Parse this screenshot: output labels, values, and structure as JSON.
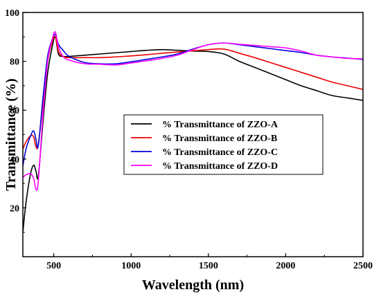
{
  "chart_data": {
    "type": "line",
    "title": "",
    "xlabel": "Wavelength (nm)",
    "ylabel": "Transmittance (%)",
    "xlim": [
      300,
      2500
    ],
    "ylim": [
      0,
      100
    ],
    "x_ticks": [
      500,
      1000,
      1500,
      2000,
      2500
    ],
    "y_ticks": [
      20,
      40,
      60,
      80,
      100
    ],
    "grid": false,
    "legend_position": "center-right",
    "series": [
      {
        "name": "% Transmittance of ZZO-A",
        "color": "#000000",
        "x": [
          300,
          320,
          350,
          370,
          385,
          400,
          430,
          460,
          490,
          510,
          530,
          560,
          600,
          700,
          800,
          900,
          1000,
          1100,
          1200,
          1300,
          1400,
          1500,
          1600,
          1700,
          1800,
          1900,
          2000,
          2100,
          2200,
          2300,
          2400,
          2500
        ],
        "y": [
          10,
          22,
          34,
          37.5,
          35,
          33,
          55,
          75,
          86,
          90,
          83,
          82,
          82,
          82.5,
          83,
          83.5,
          84,
          84.5,
          84.8,
          84.5,
          84.2,
          84,
          83,
          80,
          77.5,
          75,
          72.5,
          70,
          68,
          66,
          65,
          64
        ]
      },
      {
        "name": "% Transmittance of ZZO-B",
        "color": "#ee0000",
        "x": [
          300,
          320,
          350,
          370,
          385,
          400,
          430,
          460,
          490,
          510,
          530,
          560,
          600,
          700,
          800,
          900,
          1000,
          1100,
          1200,
          1300,
          1400,
          1500,
          1600,
          1700,
          1800,
          1900,
          2000,
          2100,
          2200,
          2300,
          2400,
          2500
        ],
        "y": [
          44,
          47,
          49.5,
          49,
          45,
          46,
          63,
          80,
          88,
          90,
          84,
          82,
          81.5,
          81.5,
          81.5,
          81.8,
          82.2,
          82.7,
          83.3,
          83.8,
          84.3,
          84.8,
          85,
          83.3,
          81.5,
          79.5,
          77.5,
          75.5,
          73.5,
          71.5,
          70,
          68.5
        ]
      },
      {
        "name": "% Transmittance of ZZO-C",
        "color": "#0000dd",
        "x": [
          300,
          320,
          350,
          370,
          385,
          400,
          430,
          460,
          490,
          510,
          530,
          560,
          600,
          700,
          800,
          900,
          1000,
          1100,
          1200,
          1300,
          1400,
          1500,
          1600,
          1700,
          1800,
          1900,
          2000,
          2100,
          2200,
          2300,
          2400,
          2500
        ],
        "y": [
          37,
          44,
          49.5,
          51.5,
          48,
          45.5,
          65,
          82,
          89,
          91,
          87,
          84.5,
          82,
          79.5,
          79,
          79,
          79.8,
          80.8,
          81.8,
          83,
          85,
          86.8,
          87.5,
          86.8,
          86,
          85.2,
          84.4,
          83.6,
          82.5,
          81.8,
          81.3,
          80.8
        ]
      },
      {
        "name": "% Transmittance of ZZO-D",
        "color": "#ff00ff",
        "x": [
          300,
          320,
          350,
          370,
          385,
          400,
          430,
          460,
          490,
          510,
          530,
          560,
          600,
          700,
          800,
          900,
          1000,
          1100,
          1200,
          1300,
          1400,
          1500,
          1600,
          1700,
          1800,
          1900,
          2000,
          2100,
          2200,
          2300,
          2400,
          2500
        ],
        "y": [
          32.5,
          33.5,
          34,
          32,
          27.5,
          31,
          58,
          80,
          89,
          92,
          86,
          82,
          80.5,
          79,
          78.8,
          78.5,
          79.3,
          80.2,
          81.2,
          82.5,
          84.8,
          86.8,
          87.5,
          87,
          86.5,
          86,
          85.5,
          84.2,
          82.5,
          81.8,
          81.2,
          81
        ]
      }
    ]
  }
}
